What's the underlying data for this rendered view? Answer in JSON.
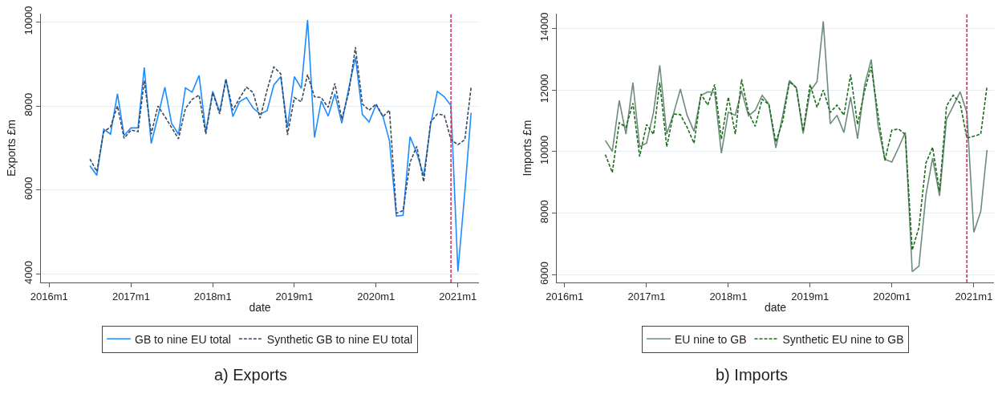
{
  "chart_data": [
    {
      "type": "line",
      "title": "a) Exports",
      "xlabel": "date",
      "ylabel": "Exports £m",
      "x": [
        "2016-07",
        "2016-08",
        "2016-09",
        "2016-10",
        "2016-11",
        "2016-12",
        "2017-01",
        "2017-02",
        "2017-03",
        "2017-04",
        "2017-05",
        "2017-06",
        "2017-07",
        "2017-08",
        "2017-09",
        "2017-10",
        "2017-11",
        "2017-12",
        "2018-01",
        "2018-02",
        "2018-03",
        "2018-04",
        "2018-05",
        "2018-06",
        "2018-07",
        "2018-08",
        "2018-09",
        "2018-10",
        "2018-11",
        "2018-12",
        "2019-01",
        "2019-02",
        "2019-03",
        "2019-04",
        "2019-05",
        "2019-06",
        "2019-07",
        "2019-08",
        "2019-09",
        "2019-10",
        "2019-11",
        "2019-12",
        "2020-01",
        "2020-02",
        "2020-03",
        "2020-04",
        "2020-05",
        "2020-06",
        "2020-07",
        "2020-08",
        "2020-09",
        "2020-10",
        "2020-11",
        "2020-12",
        "2021-01",
        "2021-02",
        "2021-03"
      ],
      "series": [
        {
          "name": "GB to nine EU total",
          "color": "#1e8cff",
          "line_style": "solid",
          "values": [
            6580,
            6350,
            7450,
            7330,
            8290,
            7300,
            7480,
            7480,
            8920,
            7110,
            7750,
            8450,
            7590,
            7330,
            8430,
            8330,
            8730,
            7390,
            8350,
            7860,
            8640,
            7750,
            8100,
            8200,
            7950,
            7810,
            7890,
            8500,
            8700,
            7490,
            8700,
            8420,
            10050,
            7250,
            8120,
            7760,
            8290,
            7590,
            8420,
            9160,
            7800,
            7620,
            8030,
            7750,
            7170,
            5380,
            5400,
            7270,
            6880,
            6340,
            7550,
            8350,
            8220,
            8010,
            4060,
            5960,
            7840
          ]
        },
        {
          "name": "Synthetic GB to nine EU total",
          "color": "#3a4a5c",
          "line_style": "dashed",
          "values": [
            6740,
            6440,
            7390,
            7500,
            8000,
            7230,
            7430,
            7390,
            8610,
            7330,
            8000,
            7750,
            7490,
            7220,
            7940,
            8160,
            8260,
            7330,
            8320,
            7810,
            8640,
            7900,
            8190,
            8450,
            8320,
            7710,
            8380,
            8930,
            8770,
            7310,
            8200,
            8100,
            8750,
            8220,
            8200,
            7970,
            8540,
            7690,
            8320,
            9400,
            8050,
            7900,
            8050,
            7750,
            7900,
            5450,
            5510,
            6660,
            7040,
            6200,
            7620,
            7810,
            7780,
            7200,
            7080,
            7200,
            8450
          ]
        }
      ],
      "xlim": [
        "2015-11-25",
        "2021-04-05"
      ],
      "xticks": [
        {
          "value": "2016-01",
          "label": "2016m1"
        },
        {
          "value": "2017-01",
          "label": "2017m1"
        },
        {
          "value": "2018-01",
          "label": "2018m1"
        },
        {
          "value": "2019-01",
          "label": "2019m1"
        },
        {
          "value": "2020-01",
          "label": "2020m1"
        },
        {
          "value": "2021-01",
          "label": "2021m1"
        }
      ],
      "ylim": [
        3800,
        10200
      ],
      "yticks": [
        4000,
        6000,
        8000,
        10000
      ],
      "ref_lines": [
        {
          "axis": "x",
          "value": "2020-12",
          "color": "#d9315a",
          "line_style": "dashed"
        }
      ],
      "grid": "y",
      "legend": "bottom",
      "marker": "none"
    },
    {
      "type": "line",
      "title": "b) Imports",
      "xlabel": "date",
      "ylabel": "Imports £m",
      "x": [
        "2016-07",
        "2016-08",
        "2016-09",
        "2016-10",
        "2016-11",
        "2016-12",
        "2017-01",
        "2017-02",
        "2017-03",
        "2017-04",
        "2017-05",
        "2017-06",
        "2017-07",
        "2017-08",
        "2017-09",
        "2017-10",
        "2017-11",
        "2017-12",
        "2018-01",
        "2018-02",
        "2018-03",
        "2018-04",
        "2018-05",
        "2018-06",
        "2018-07",
        "2018-08",
        "2018-09",
        "2018-10",
        "2018-11",
        "2018-12",
        "2019-01",
        "2019-02",
        "2019-03",
        "2019-04",
        "2019-05",
        "2019-06",
        "2019-07",
        "2019-08",
        "2019-09",
        "2019-10",
        "2019-11",
        "2019-12",
        "2020-01",
        "2020-02",
        "2020-03",
        "2020-04",
        "2020-05",
        "2020-06",
        "2020-07",
        "2020-08",
        "2020-09",
        "2020-10",
        "2020-11",
        "2020-12",
        "2021-01",
        "2021-02",
        "2021-03"
      ],
      "series": [
        {
          "name": "EU nine to GB",
          "color": "#6e8b7d",
          "line_style": "solid",
          "values": [
            10360,
            10010,
            11660,
            10570,
            12240,
            10160,
            10270,
            11270,
            12800,
            10570,
            11220,
            12030,
            11180,
            10660,
            11830,
            11940,
            11920,
            9950,
            11280,
            11180,
            11980,
            11160,
            11340,
            11830,
            11540,
            10120,
            11180,
            12310,
            12070,
            10590,
            11960,
            12270,
            14230,
            10900,
            11180,
            10620,
            11770,
            10420,
            12150,
            12990,
            10830,
            9750,
            9660,
            10140,
            10620,
            6100,
            6280,
            8580,
            9790,
            8560,
            11050,
            11480,
            11940,
            11270,
            7380,
            8060,
            10050
          ]
        },
        {
          "name": "Synthetic EU nine to GB",
          "color": "#1a6e1a",
          "line_style": "dashed",
          "values": [
            9900,
            9320,
            10940,
            10790,
            11570,
            9840,
            10880,
            10560,
            12240,
            10160,
            11220,
            11200,
            10790,
            10270,
            11870,
            11510,
            12180,
            10400,
            11770,
            10570,
            12350,
            11270,
            10820,
            11700,
            11530,
            10310,
            10990,
            12270,
            12070,
            10660,
            12180,
            11440,
            12000,
            11270,
            11510,
            11180,
            12500,
            10880,
            11960,
            12760,
            11180,
            9710,
            10700,
            10730,
            10560,
            6800,
            7540,
            9620,
            10140,
            8710,
            11480,
            11830,
            11570,
            10440,
            10500,
            10570,
            12120
          ]
        }
      ],
      "xlim": [
        "2015-11-27",
        "2021-04-01"
      ],
      "xticks": [
        {
          "value": "2016-01",
          "label": "2016m1"
        },
        {
          "value": "2017-01",
          "label": "2017m1"
        },
        {
          "value": "2018-01",
          "label": "2018m1"
        },
        {
          "value": "2019-01",
          "label": "2019m1"
        },
        {
          "value": "2020-01",
          "label": "2020m1"
        },
        {
          "value": "2021-01",
          "label": "2021m1"
        }
      ],
      "ylim": [
        5750,
        14480
      ],
      "yticks": [
        6000,
        8000,
        10000,
        12000,
        14000
      ],
      "ref_lines": [
        {
          "axis": "x",
          "value": "2020-12",
          "color": "#d9315a",
          "line_style": "dashed"
        }
      ],
      "grid": "y",
      "legend": "bottom",
      "marker": "none"
    }
  ]
}
